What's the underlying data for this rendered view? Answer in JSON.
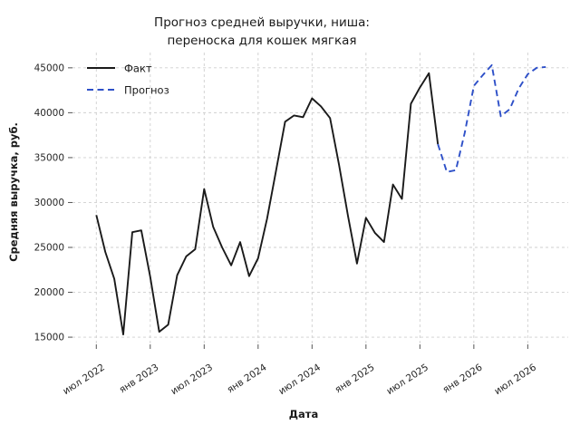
{
  "title": {
    "line1": "Прогноз средней выручки, ниша:",
    "line2": "переноска для кошек мягкая"
  },
  "colors": {
    "fact": "#1a1a1a",
    "forecast": "#2e50c8",
    "grid": "#cfcfcf",
    "tick": "#555555",
    "background": "#ffffff"
  },
  "chart_data": {
    "type": "line",
    "title": "Прогноз средней выручки, ниша: переноска для кошек мягкая",
    "xlabel": "Дата",
    "ylabel": "Средняя выручка, руб.",
    "grid": true,
    "legend_position": "upper left",
    "ylim": [
      14200,
      46700
    ],
    "y_ticks": [
      15000,
      20000,
      25000,
      30000,
      35000,
      40000,
      45000
    ],
    "x_ticks": [
      {
        "m": "2022-07",
        "label": "июл 2022"
      },
      {
        "m": "2023-01",
        "label": "янв 2023"
      },
      {
        "m": "2023-07",
        "label": "июл 2023"
      },
      {
        "m": "2024-01",
        "label": "янв 2024"
      },
      {
        "m": "2024-07",
        "label": "июл 2024"
      },
      {
        "m": "2025-01",
        "label": "янв 2025"
      },
      {
        "m": "2025-07",
        "label": "июл 2025"
      },
      {
        "m": "2026-01",
        "label": "янв 2026"
      },
      {
        "m": "2026-07",
        "label": "июл 2026"
      }
    ],
    "series": [
      {
        "name": "Факт",
        "style": "solid",
        "color": "#1a1a1a",
        "x": [
          "2022-07",
          "2022-08",
          "2022-09",
          "2022-10",
          "2022-11",
          "2022-12",
          "2023-01",
          "2023-02",
          "2023-03",
          "2023-04",
          "2023-05",
          "2023-06",
          "2023-07",
          "2023-08",
          "2023-09",
          "2023-10",
          "2023-11",
          "2023-12",
          "2024-01",
          "2024-02",
          "2024-03",
          "2024-04",
          "2024-05",
          "2024-06",
          "2024-07",
          "2024-08",
          "2024-09",
          "2024-10",
          "2024-11",
          "2024-12",
          "2025-01",
          "2025-02",
          "2025-03",
          "2025-04",
          "2025-05",
          "2025-06",
          "2025-07",
          "2025-08",
          "2025-09"
        ],
        "values": [
          28600,
          24500,
          21500,
          15300,
          26700,
          26900,
          21700,
          15600,
          16400,
          21900,
          24000,
          24800,
          31500,
          27300,
          25000,
          23000,
          25600,
          21800,
          23800,
          28200,
          33600,
          39000,
          39700,
          39500,
          41600,
          40700,
          39400,
          34200,
          28500,
          23200,
          28300,
          26600,
          25600,
          32000,
          30400,
          41000,
          42800,
          44400,
          36500
        ]
      },
      {
        "name": "Прогноз",
        "style": "dashed",
        "color": "#2e50c8",
        "x": [
          "2025-09",
          "2025-10",
          "2025-11",
          "2025-12",
          "2026-01",
          "2026-02",
          "2026-03",
          "2026-04",
          "2026-05",
          "2026-06",
          "2026-07",
          "2026-08",
          "2026-09"
        ],
        "values": [
          36500,
          33400,
          33600,
          37800,
          43000,
          44200,
          45300,
          39600,
          40400,
          42700,
          44300,
          45000,
          45100
        ]
      }
    ]
  }
}
